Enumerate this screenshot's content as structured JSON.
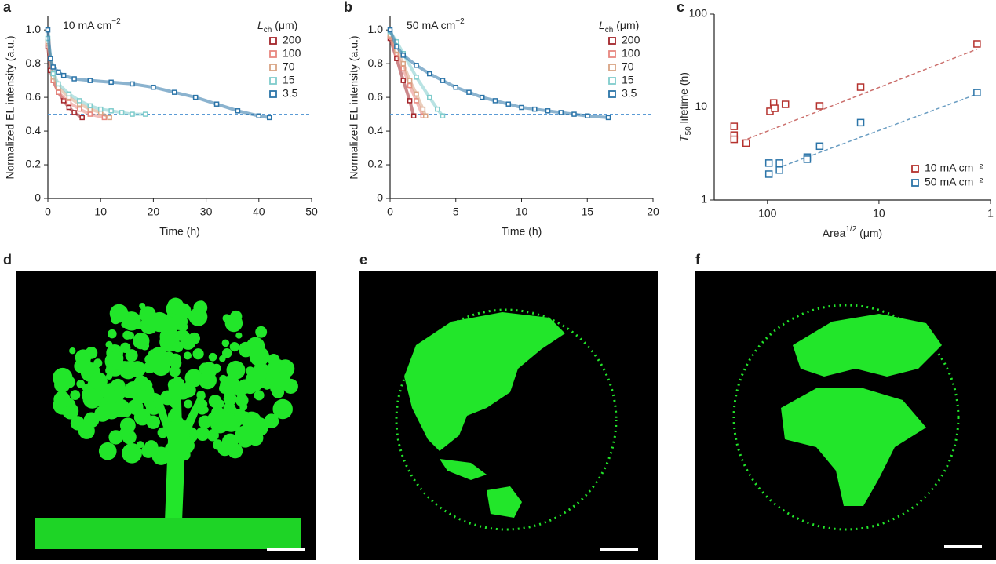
{
  "chart_data": [
    {
      "panel": "a",
      "type": "line",
      "annotation": [
        "10 mA cm",
        "−2"
      ],
      "legend_title": [
        "L",
        "ch",
        " (μm)"
      ],
      "x_label": "Time (h)",
      "y_label": "Normalized EL intensity (a.u.)",
      "xlim": [
        0,
        50
      ],
      "xticks": [
        0,
        10,
        20,
        30,
        40,
        50
      ],
      "ylim": [
        0,
        1.08
      ],
      "yticks": [
        0,
        0.2,
        0.4,
        0.6,
        0.8,
        {
          "value": 1,
          "label": "1.0"
        }
      ],
      "reference_line": 0.5,
      "reference_color": "#5b9bd5",
      "series": [
        {
          "name": "200",
          "color": "#a3242a",
          "x": [
            0,
            0.5,
            1,
            2,
            3,
            4,
            5,
            6.5
          ],
          "values": [
            0.9,
            0.76,
            0.7,
            0.63,
            0.58,
            0.54,
            0.51,
            0.48
          ]
        },
        {
          "name": "100",
          "color": "#e8877f",
          "x": [
            0,
            1,
            2,
            4,
            6,
            8,
            10.7
          ],
          "values": [
            0.92,
            0.7,
            0.63,
            0.57,
            0.53,
            0.5,
            0.48
          ]
        },
        {
          "name": "70",
          "color": "#d9a484",
          "x": [
            0,
            1,
            2,
            4,
            6,
            8,
            10,
            11.7
          ],
          "values": [
            0.93,
            0.72,
            0.66,
            0.6,
            0.56,
            0.53,
            0.51,
            0.48
          ]
        },
        {
          "name": "15",
          "color": "#7fcccc",
          "x": [
            0,
            1,
            2,
            4,
            6,
            8,
            10,
            12,
            14,
            16,
            18.5
          ],
          "values": [
            0.95,
            0.74,
            0.68,
            0.62,
            0.58,
            0.55,
            0.53,
            0.52,
            0.51,
            0.5,
            0.5
          ]
        },
        {
          "name": "3.5",
          "color": "#2b74a8",
          "x": [
            0,
            0.5,
            1,
            2,
            3,
            5,
            8,
            12,
            16,
            20,
            24,
            28,
            32,
            36,
            40,
            42
          ],
          "values": [
            1.0,
            0.83,
            0.78,
            0.75,
            0.73,
            0.71,
            0.7,
            0.69,
            0.68,
            0.66,
            0.63,
            0.6,
            0.56,
            0.52,
            0.49,
            0.48
          ]
        }
      ]
    },
    {
      "panel": "b",
      "type": "line",
      "annotation": [
        "50 mA cm",
        "−2"
      ],
      "legend_title": [
        "L",
        "ch",
        " (μm)"
      ],
      "x_label": "Time (h)",
      "y_label": "Normalized EL intensity (a.u.)",
      "xlim": [
        0,
        20
      ],
      "xticks": [
        0,
        5,
        10,
        15,
        20
      ],
      "ylim": [
        0,
        1.08
      ],
      "yticks": [
        0,
        0.2,
        0.4,
        0.6,
        0.8,
        {
          "value": 1,
          "label": "1.0"
        }
      ],
      "reference_line": 0.5,
      "reference_color": "#5b9bd5",
      "series": [
        {
          "name": "200",
          "color": "#a3242a",
          "x": [
            0,
            0.5,
            1,
            1.5,
            1.8
          ],
          "values": [
            0.95,
            0.83,
            0.7,
            0.58,
            0.49
          ]
        },
        {
          "name": "100",
          "color": "#e8877f",
          "x": [
            0,
            0.5,
            1,
            1.5,
            2,
            2.5
          ],
          "values": [
            0.96,
            0.86,
            0.77,
            0.67,
            0.58,
            0.49
          ]
        },
        {
          "name": "70",
          "color": "#d9a484",
          "x": [
            0,
            0.5,
            1,
            1.5,
            2,
            2.5,
            2.7
          ],
          "values": [
            0.97,
            0.88,
            0.8,
            0.7,
            0.62,
            0.53,
            0.49
          ]
        },
        {
          "name": "15",
          "color": "#7fcccc",
          "x": [
            0,
            0.5,
            1,
            2,
            3,
            3.6,
            4
          ],
          "values": [
            0.99,
            0.93,
            0.86,
            0.72,
            0.6,
            0.53,
            0.49
          ]
        },
        {
          "name": "3.5",
          "color": "#2b74a8",
          "x": [
            0,
            0.5,
            1,
            2,
            3,
            4,
            5,
            6,
            7,
            8,
            9,
            10,
            11,
            12,
            13,
            14,
            15,
            16.6
          ],
          "values": [
            1.0,
            0.9,
            0.85,
            0.79,
            0.74,
            0.7,
            0.66,
            0.63,
            0.6,
            0.58,
            0.56,
            0.54,
            0.53,
            0.52,
            0.51,
            0.5,
            0.49,
            0.48
          ]
        }
      ]
    },
    {
      "panel": "c",
      "type": "scatter",
      "log_x": true,
      "log_y": true,
      "x_label": [
        "Area",
        "1/2",
        " (μm)"
      ],
      "y_label": [
        "T",
        "50",
        " lifetime (h)"
      ],
      "xlim": [
        300,
        1
      ],
      "xticks": [
        100,
        10,
        1
      ],
      "ylim": [
        1,
        100
      ],
      "yticks": [
        1,
        10,
        100
      ],
      "legend": "lower right",
      "series": [
        {
          "name": "10 mA cm⁻²",
          "color": "#b5322e",
          "x": [
            199,
            199,
            199,
            155,
            95,
            88,
            86,
            69,
            34,
            14.6,
            1.32
          ],
          "values": [
            6.2,
            5.0,
            4.5,
            4.1,
            9.0,
            11.1,
            9.7,
            10.7,
            10.3,
            16.4,
            47.8
          ],
          "fit_x": [
            170,
            1.32
          ],
          "fit_y": [
            4.3,
            42
          ]
        },
        {
          "name": "50 mA cm⁻²",
          "color": "#2b74a8",
          "x": [
            97,
            97,
            78,
            78,
            44,
            44,
            34,
            14.6,
            1.32
          ],
          "values": [
            2.5,
            1.9,
            2.5,
            2.1,
            2.9,
            2.75,
            3.8,
            6.8,
            14.3
          ],
          "fit_x": [
            82,
            1.32
          ],
          "fit_y": [
            2.2,
            13.8
          ]
        }
      ]
    }
  ],
  "images": [
    {
      "panel": "d"
    },
    {
      "panel": "e"
    },
    {
      "panel": "f"
    }
  ]
}
